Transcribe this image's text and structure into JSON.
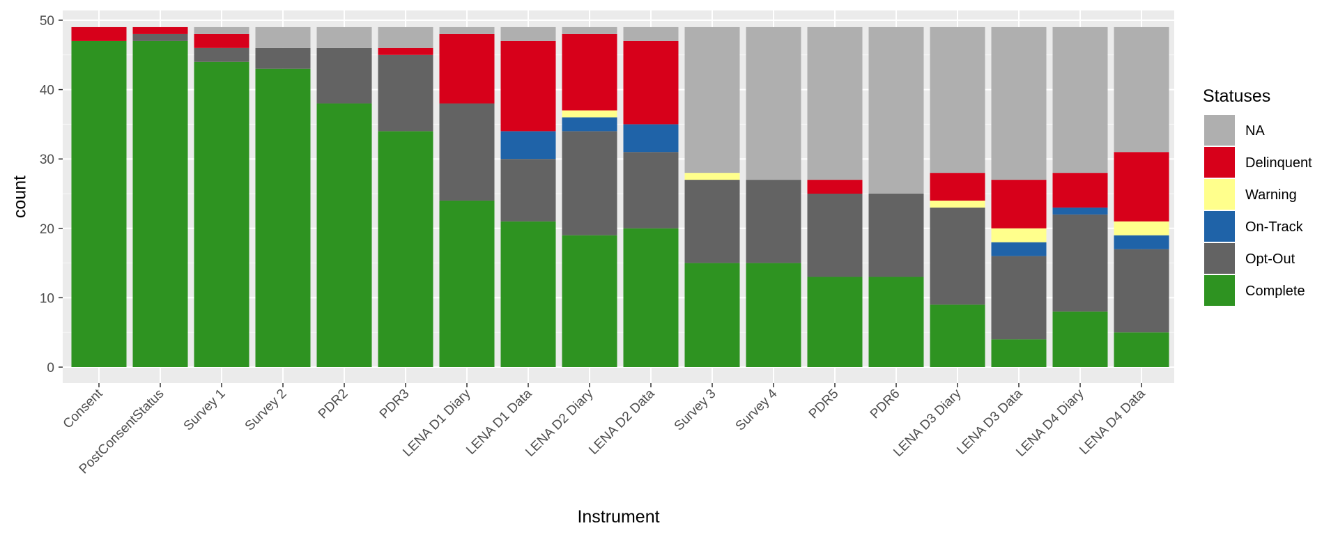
{
  "chart_data": {
    "type": "bar",
    "stacked": true,
    "xlabel": "Instrument",
    "ylabel": "count",
    "ylim": [
      0,
      50
    ],
    "yticks": [
      0,
      10,
      20,
      30,
      40,
      50
    ],
    "grid": true,
    "legend_position": "right",
    "legend_title": "Statuses",
    "legend_order": [
      "NA",
      "Delinquent",
      "Warning",
      "On-Track",
      "Opt-Out",
      "Complete"
    ],
    "categories": [
      "Consent",
      "PostConsentStatus",
      "Survey 1",
      "Survey 2",
      "PDR2",
      "PDR3",
      "LENA D1 Diary",
      "LENA D1 Data",
      "LENA D2 Diary",
      "LENA D2 Data",
      "Survey 3",
      "Survey 4",
      "PDR5",
      "PDR6",
      "LENA D3 Diary",
      "LENA D3 Data",
      "LENA D4 Diary",
      "LENA D4 Data"
    ],
    "series": [
      {
        "name": "Complete",
        "color": "#2e9321",
        "values": [
          47,
          47,
          44,
          43,
          38,
          34,
          24,
          21,
          19,
          20,
          15,
          15,
          13,
          13,
          9,
          4,
          8,
          5
        ]
      },
      {
        "name": "Opt-Out",
        "color": "#636363",
        "values": [
          0,
          1,
          2,
          3,
          8,
          11,
          14,
          9,
          15,
          11,
          12,
          12,
          12,
          12,
          14,
          12,
          14,
          12
        ]
      },
      {
        "name": "On-Track",
        "color": "#1f63a8",
        "values": [
          0,
          0,
          0,
          0,
          0,
          0,
          0,
          4,
          2,
          4,
          0,
          0,
          0,
          0,
          0,
          2,
          1,
          2
        ]
      },
      {
        "name": "Warning",
        "color": "#ffff8c",
        "values": [
          0,
          0,
          0,
          0,
          0,
          0,
          0,
          0,
          1,
          0,
          1,
          0,
          0,
          0,
          1,
          2,
          0,
          2
        ]
      },
      {
        "name": "Delinquent",
        "color": "#d7001a",
        "values": [
          2,
          1,
          2,
          0,
          0,
          1,
          10,
          13,
          11,
          12,
          0,
          0,
          2,
          0,
          4,
          7,
          5,
          10
        ]
      },
      {
        "name": "NA",
        "color": "#afafaf",
        "values": [
          0,
          0,
          1,
          3,
          3,
          3,
          1,
          2,
          1,
          2,
          21,
          22,
          22,
          24,
          21,
          22,
          21,
          18
        ]
      }
    ]
  }
}
